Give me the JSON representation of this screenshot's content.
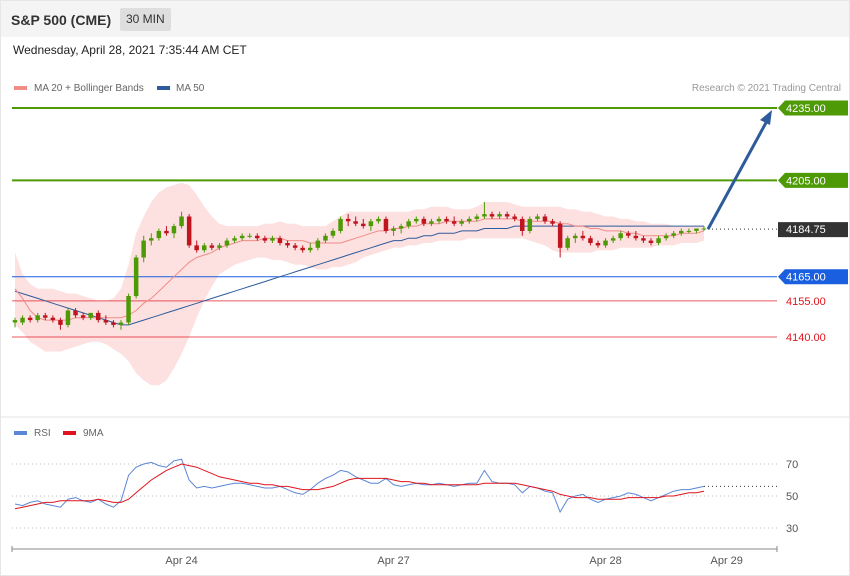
{
  "header": {
    "title": "S&P 500 (CME)",
    "timeframe": "30 MIN",
    "datetime": "Wednesday, April 28, 2021 7:35:44 AM CET"
  },
  "legend": {
    "ma20_label": "MA 20 + Bollinger Bands",
    "ma50_label": "MA 50",
    "ma20_color": "#f08c88",
    "ma50_color": "#2e5b9a",
    "credit": "Research © 2021 Trading Central"
  },
  "rsi_legend": {
    "rsi_label": "RSI",
    "ma_label": "9MA",
    "rsi_color": "#5b86d6",
    "ma_color": "#e0141e"
  },
  "levels": [
    {
      "label": "4235.00",
      "value": 4235.0,
      "kind": "resistance",
      "color": "#4e9a06"
    },
    {
      "label": "4205.00",
      "value": 4205.0,
      "kind": "resistance",
      "color": "#4e9a06"
    },
    {
      "label": "4184.75",
      "value": 4184.75,
      "kind": "last",
      "color": "#333333"
    },
    {
      "label": "4165.00",
      "value": 4165.0,
      "kind": "pivot",
      "color": "#1a5fe0"
    },
    {
      "label": "4155.00",
      "value": 4155.0,
      "kind": "support",
      "color": "#e0141e"
    },
    {
      "label": "4140.00",
      "value": 4140.0,
      "kind": "support",
      "color": "#e0141e"
    }
  ],
  "x_axis": {
    "labels": [
      {
        "text": "Apr 24",
        "bar": 22
      },
      {
        "text": "Apr 27",
        "bar": 50
      },
      {
        "text": "Apr 28",
        "bar": 78
      },
      {
        "text": "Apr 29",
        "bar": 94
      }
    ]
  },
  "rsi_axis": {
    "ticks": [
      70,
      50,
      30
    ]
  },
  "chart_data": {
    "type": "candlestick",
    "price_scale": {
      "min": 4118,
      "max": 4238
    },
    "ohlc": [
      [
        4146,
        4148,
        4144,
        4147
      ],
      [
        4146,
        4149,
        4145,
        4148
      ],
      [
        4148,
        4149,
        4146,
        4147
      ],
      [
        4147,
        4150,
        4146,
        4149
      ],
      [
        4149,
        4150,
        4147,
        4148
      ],
      [
        4148,
        4149,
        4146,
        4147
      ],
      [
        4147,
        4148,
        4143,
        4145
      ],
      [
        4145,
        4152,
        4144,
        4151
      ],
      [
        4151,
        4152,
        4148,
        4149
      ],
      [
        4149,
        4150,
        4147,
        4148
      ],
      [
        4148,
        4150,
        4147,
        4150
      ],
      [
        4150,
        4151,
        4146,
        4147
      ],
      [
        4147,
        4149,
        4145,
        4146
      ],
      [
        4146,
        4147,
        4144,
        4145
      ],
      [
        4145,
        4147,
        4143,
        4146
      ],
      [
        4146,
        4158,
        4145,
        4157
      ],
      [
        4157,
        4174,
        4156,
        4173
      ],
      [
        4173,
        4182,
        4171,
        4180
      ],
      [
        4180,
        4183,
        4178,
        4181
      ],
      [
        4181,
        4185,
        4180,
        4184
      ],
      [
        4184,
        4186,
        4182,
        4183
      ],
      [
        4183,
        4187,
        4181,
        4186
      ],
      [
        4186,
        4192,
        4185,
        4190
      ],
      [
        4190,
        4191,
        4177,
        4178
      ],
      [
        4178,
        4180,
        4175,
        4176
      ],
      [
        4176,
        4179,
        4175,
        4178
      ],
      [
        4178,
        4179,
        4176,
        4177
      ],
      [
        4177,
        4179,
        4176,
        4178
      ],
      [
        4178,
        4181,
        4177,
        4180
      ],
      [
        4180,
        4182,
        4179,
        4181
      ],
      [
        4181,
        4183,
        4180,
        4182
      ],
      [
        4182,
        4183,
        4181,
        4182
      ],
      [
        4182,
        4183,
        4180,
        4181
      ],
      [
        4181,
        4182,
        4179,
        4180
      ],
      [
        4180,
        4182,
        4179,
        4181
      ],
      [
        4181,
        4182,
        4178,
        4179
      ],
      [
        4179,
        4180,
        4177,
        4178
      ],
      [
        4178,
        4179,
        4176,
        4177
      ],
      [
        4177,
        4178,
        4175,
        4176
      ],
      [
        4176,
        4179,
        4175,
        4177
      ],
      [
        4177,
        4181,
        4176,
        4180
      ],
      [
        4180,
        4183,
        4179,
        4182
      ],
      [
        4182,
        4185,
        4181,
        4184
      ],
      [
        4184,
        4190,
        4183,
        4189
      ],
      [
        4189,
        4191,
        4186,
        4188
      ],
      [
        4188,
        4190,
        4186,
        4187
      ],
      [
        4187,
        4189,
        4185,
        4186
      ],
      [
        4186,
        4189,
        4184,
        4188
      ],
      [
        4188,
        4190,
        4187,
        4189
      ],
      [
        4189,
        4190,
        4183,
        4184
      ],
      [
        4184,
        4186,
        4182,
        4185
      ],
      [
        4185,
        4187,
        4183,
        4186
      ],
      [
        4186,
        4189,
        4185,
        4188
      ],
      [
        4188,
        4190,
        4187,
        4189
      ],
      [
        4189,
        4190,
        4186,
        4187
      ],
      [
        4187,
        4189,
        4186,
        4188
      ],
      [
        4188,
        4190,
        4187,
        4189
      ],
      [
        4189,
        4190,
        4187,
        4188
      ],
      [
        4188,
        4190,
        4186,
        4187
      ],
      [
        4187,
        4189,
        4186,
        4188
      ],
      [
        4188,
        4190,
        4187,
        4189
      ],
      [
        4189,
        4191,
        4188,
        4190
      ],
      [
        4190,
        4196,
        4189,
        4191
      ],
      [
        4191,
        4192,
        4189,
        4190
      ],
      [
        4190,
        4192,
        4189,
        4191
      ],
      [
        4191,
        4192,
        4189,
        4190
      ],
      [
        4190,
        4191,
        4188,
        4189
      ],
      [
        4189,
        4190,
        4182,
        4184
      ],
      [
        4184,
        4190,
        4183,
        4189
      ],
      [
        4189,
        4191,
        4188,
        4190
      ],
      [
        4190,
        4191,
        4187,
        4188
      ],
      [
        4188,
        4189,
        4186,
        4187
      ],
      [
        4187,
        4188,
        4173,
        4177
      ],
      [
        4177,
        4182,
        4176,
        4181
      ],
      [
        4181,
        4183,
        4179,
        4182
      ],
      [
        4182,
        4184,
        4180,
        4181
      ],
      [
        4181,
        4182,
        4178,
        4179
      ],
      [
        4179,
        4180,
        4177,
        4178
      ],
      [
        4178,
        4181,
        4177,
        4180
      ],
      [
        4180,
        4182,
        4179,
        4181
      ],
      [
        4181,
        4184,
        4180,
        4183
      ],
      [
        4183,
        4184,
        4181,
        4182
      ],
      [
        4182,
        4184,
        4180,
        4181
      ],
      [
        4181,
        4182,
        4179,
        4180
      ],
      [
        4180,
        4181,
        4178,
        4179
      ],
      [
        4179,
        4182,
        4178,
        4181
      ],
      [
        4181,
        4183,
        4180,
        4182
      ],
      [
        4182,
        4184,
        4181,
        4183
      ],
      [
        4183,
        4185,
        4182,
        4184
      ],
      [
        4184,
        4185,
        4183,
        4184
      ],
      [
        4184,
        4185,
        4183,
        4185
      ],
      [
        4185,
        4186,
        4184,
        4185
      ]
    ],
    "ma20": [
      4160,
      4156,
      4151,
      4148,
      4147,
      4147,
      4147,
      4147,
      4148,
      4148,
      4148,
      4148,
      4148,
      4148,
      4148,
      4149,
      4151,
      4154,
      4156,
      4159,
      4162,
      4165,
      4168,
      4171,
      4173,
      4174,
      4175,
      4177,
      4178,
      4179,
      4180,
      4180,
      4180,
      4181,
      4181,
      4181,
      4180,
      4180,
      4180,
      4179,
      4179,
      4179,
      4179,
      4179,
      4180,
      4181,
      4182,
      4183,
      4184,
      4184,
      4185,
      4185,
      4186,
      4186,
      4187,
      4187,
      4187,
      4188,
      4188,
      4188,
      4188,
      4188,
      4189,
      4189,
      4189,
      4189,
      4189,
      4188,
      4188,
      4188,
      4188,
      4188,
      4187,
      4187,
      4186,
      4186,
      4185,
      4185,
      4184,
      4184,
      4184,
      4183,
      4183,
      4182,
      4182,
      4182,
      4182,
      4182,
      4183,
      4183,
      4183,
      4184
    ],
    "ma50": [
      4159,
      4158,
      4157,
      4156,
      4155,
      4154,
      4153,
      4152,
      4151,
      4150,
      4149,
      4148,
      4147,
      4146,
      4145,
      4145,
      4146,
      4147,
      4148,
      4149,
      4150,
      4151,
      4152,
      4153,
      4154,
      4155,
      4156,
      4157,
      4158,
      4159,
      4160,
      4161,
      4162,
      4163,
      4164,
      4165,
      4166,
      4167,
      4168,
      4169,
      4170,
      4171,
      4172,
      4173,
      4174,
      4175,
      4176,
      4177,
      4178,
      4179,
      4180,
      4180,
      4181,
      4181,
      4182,
      4182,
      4183,
      4183,
      4183,
      4184,
      4184,
      4184,
      4185,
      4185,
      4185,
      4185,
      4186,
      4186,
      4186,
      4186,
      4186,
      4186,
      4186,
      4186,
      4186,
      4186,
      4186,
      4186,
      4186,
      4186,
      4186,
      4186,
      4186,
      4186,
      4186,
      4186,
      4186,
      4186,
      4186,
      4186,
      4186,
      4186
    ],
    "bb_upper": [
      4175,
      4166,
      4162,
      4160,
      4160,
      4160,
      4159,
      4158,
      4158,
      4157,
      4156,
      4155,
      4155,
      4156,
      4160,
      4170,
      4183,
      4190,
      4196,
      4200,
      4202,
      4203,
      4204,
      4203,
      4199,
      4194,
      4190,
      4187,
      4186,
      4186,
      4186,
      4186,
      4186,
      4187,
      4187,
      4188,
      4187,
      4187,
      4186,
      4186,
      4186,
      4186,
      4188,
      4190,
      4192,
      4192,
      4192,
      4192,
      4192,
      4192,
      4192,
      4192,
      4192,
      4193,
      4193,
      4194,
      4194,
      4194,
      4193,
      4193,
      4193,
      4194,
      4196,
      4196,
      4196,
      4196,
      4195,
      4194,
      4194,
      4194,
      4194,
      4194,
      4194,
      4193,
      4193,
      4192,
      4192,
      4191,
      4190,
      4190,
      4189,
      4189,
      4188,
      4188,
      4187,
      4187,
      4187,
      4186,
      4186,
      4186,
      4186,
      4186
    ],
    "bb_lower": [
      4145,
      4142,
      4138,
      4136,
      4134,
      4134,
      4134,
      4135,
      4136,
      4137,
      4138,
      4138,
      4137,
      4135,
      4133,
      4130,
      4125,
      4122,
      4120,
      4120,
      4122,
      4127,
      4133,
      4140,
      4148,
      4155,
      4161,
      4166,
      4168,
      4170,
      4171,
      4172,
      4173,
      4173,
      4172,
      4172,
      4171,
      4170,
      4170,
      4169,
      4168,
      4168,
      4169,
      4169,
      4170,
      4171,
      4173,
      4174,
      4175,
      4176,
      4177,
      4177,
      4178,
      4178,
      4179,
      4179,
      4180,
      4180,
      4180,
      4180,
      4181,
      4181,
      4181,
      4181,
      4181,
      4181,
      4181,
      4181,
      4180,
      4179,
      4178,
      4176,
      4175,
      4175,
      4175,
      4175,
      4175,
      4176,
      4176,
      4176,
      4177,
      4177,
      4177,
      4177,
      4177,
      4178,
      4178,
      4178,
      4179,
      4179,
      4179,
      4180
    ],
    "rsi": [
      45,
      44,
      46,
      47,
      45,
      44,
      43,
      48,
      49,
      47,
      46,
      48,
      45,
      43,
      47,
      63,
      68,
      70,
      71,
      69,
      68,
      72,
      73,
      60,
      55,
      56,
      55,
      56,
      57,
      58,
      58,
      57,
      56,
      55,
      55,
      56,
      54,
      52,
      51,
      54,
      58,
      61,
      63,
      66,
      65,
      62,
      60,
      58,
      58,
      61,
      57,
      56,
      57,
      58,
      57,
      57,
      58,
      57,
      56,
      57,
      58,
      58,
      66,
      59,
      58,
      58,
      57,
      52,
      56,
      55,
      53,
      52,
      40,
      48,
      50,
      51,
      48,
      46,
      48,
      49,
      50,
      52,
      51,
      49,
      47,
      49,
      51,
      53,
      54,
      54,
      55,
      56
    ],
    "rsi_ma": [
      42,
      43,
      44,
      45,
      46,
      46,
      47,
      47,
      47,
      47,
      47,
      48,
      47,
      46,
      46,
      48,
      52,
      56,
      60,
      63,
      66,
      68,
      70,
      69,
      68,
      66,
      64,
      62,
      61,
      60,
      59,
      58,
      58,
      57,
      57,
      56,
      56,
      55,
      54,
      54,
      54,
      55,
      56,
      58,
      60,
      61,
      61,
      61,
      61,
      61,
      60,
      59,
      59,
      58,
      58,
      57,
      57,
      57,
      57,
      57,
      57,
      57,
      58,
      58,
      58,
      58,
      58,
      57,
      56,
      55,
      54,
      53,
      51,
      50,
      49,
      49,
      49,
      48,
      48,
      48,
      48,
      49,
      49,
      49,
      49,
      49,
      50,
      50,
      51,
      52,
      52,
      53
    ],
    "projection": {
      "from": 4184.75,
      "to": 4235.0
    }
  }
}
